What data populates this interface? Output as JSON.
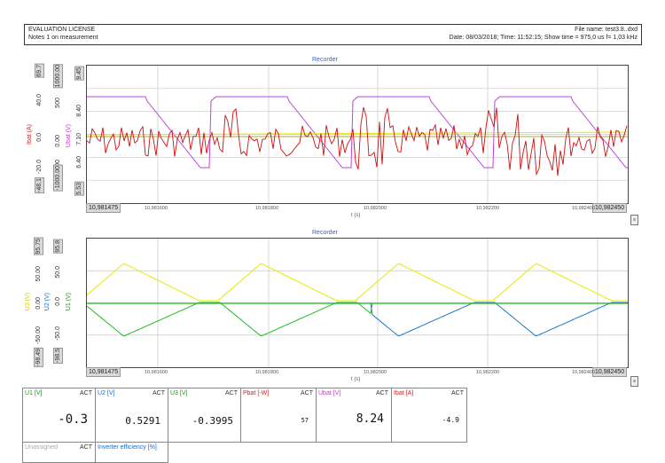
{
  "header": {
    "license": "EVALUATION LICENSE",
    "notes": "Notes 1 on measurement",
    "file_name": "File name: test3.8..dxd",
    "date_line": "Date: 08/03/2018; Time: 11:52:15; Show time = 975,0 us  f= 1,03 kHz"
  },
  "recorder1": {
    "title": "Recorder",
    "axes": [
      {
        "name": "Ibat (A)",
        "top": "69.7",
        "mid_ticks": [
          "40.0",
          "0.0",
          "-20.0"
        ],
        "bottom": "-48.1",
        "color": "#d42020"
      },
      {
        "name": "Ubat (V)",
        "top": "1000.00",
        "mid_ticks": [
          "500",
          "0.00",
          "-500"
        ],
        "bottom": "-1000.00",
        "color": "#c040c0"
      },
      {
        "name": "",
        "top": "9.45",
        "mid_ticks": [
          "8.40",
          "7.10",
          "6.40"
        ],
        "bottom": "5.53",
        "color": "#444"
      }
    ],
    "x_start": "10,981475",
    "x_end": "10,982450",
    "x_ticks": [
      "10,981600",
      "10,981800",
      "10,982000",
      "10,982200",
      "10,982400"
    ],
    "x_unit": "t (s)"
  },
  "recorder2": {
    "title": "Recorder",
    "axes": [
      {
        "name": "U1 (V)",
        "top": "95.75",
        "mid_ticks": [
          "50.00",
          "0.00",
          "-50.00"
        ],
        "bottom": "-98.49",
        "color": "#2a8a2a"
      },
      {
        "name": "U2 (V)",
        "top": "95.8",
        "mid_ticks": [
          "50.0",
          "0.0",
          "-50.0"
        ],
        "bottom": "-98.5",
        "color": "#1a6bc8"
      },
      {
        "name": "U3 (V)",
        "top": "",
        "mid_ticks": [],
        "bottom": "",
        "color": "#d4c800"
      }
    ],
    "x_start": "10,981475",
    "x_end": "10,982450",
    "x_ticks": [
      "10,981600",
      "10,981800",
      "10,982000",
      "10,982200",
      "10,982400"
    ],
    "x_unit": "t (s)"
  },
  "meters": [
    {
      "name": "U1 [V]",
      "act": "ACT",
      "value": "-0.3",
      "color": "#2a8a2a"
    },
    {
      "name": "U2 [V]",
      "act": "ACT",
      "value": "0.5291",
      "color": "#1a6bc8"
    },
    {
      "name": "U3 [V]",
      "act": "ACT",
      "value": "-0.3995",
      "color": "#2a8a2a"
    },
    {
      "name": "Pbat [-W]",
      "act": "ACT",
      "value": "57",
      "color": "#d42020"
    },
    {
      "name": "Ubat [V]",
      "act": "ACT",
      "value": "8.24",
      "color": "#c040c0"
    },
    {
      "name": "Ibat [A]",
      "act": "ACT",
      "value": "-4.9",
      "color": "#d42020"
    }
  ],
  "meters2": [
    {
      "name": "Unassigned",
      "act": "ACT",
      "color": "#aaaaaa"
    },
    {
      "name": "Inverter efficiency [%]",
      "act": "",
      "color": "#1a6bc8"
    }
  ],
  "colors": {
    "ibat": "#cc1010",
    "ubat": "#c040e0",
    "yellow": "#e8e800",
    "green": "#22bb22",
    "blue": "#1a78c8",
    "olive": "#8a8a10"
  }
}
